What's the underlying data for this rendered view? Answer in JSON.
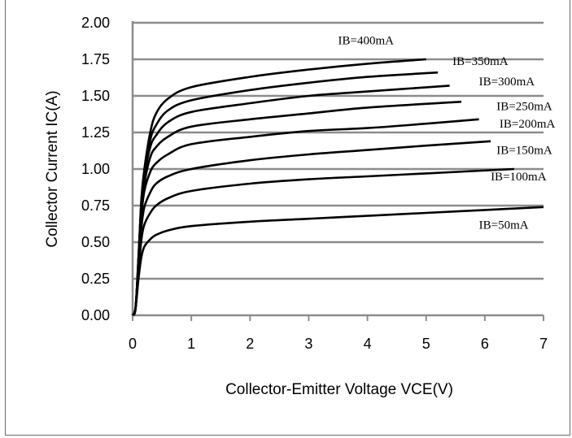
{
  "chart_data": {
    "type": "line",
    "title": "",
    "xlabel": "Collector-Emitter  Voltage VCE(V)",
    "ylabel": "Collector Current IC(A)",
    "xlim": [
      0,
      7
    ],
    "ylim": [
      0,
      2
    ],
    "x_ticks": [
      "0",
      "1",
      "2",
      "3",
      "4",
      "5",
      "6",
      "7"
    ],
    "y_ticks": [
      "0.00",
      "0.25",
      "0.50",
      "0.75",
      "1.00",
      "1.25",
      "1.50",
      "1.75",
      "2.00"
    ],
    "grid": "horizontal",
    "colors": {
      "line": "#000000",
      "grid": "#8c8c8c",
      "frame": "#6b6b6b"
    },
    "series": [
      {
        "name": "IB=400mA",
        "x": [
          0.05,
          0.1,
          0.15,
          0.2,
          0.3,
          0.4,
          0.6,
          1,
          2,
          3,
          4,
          5
        ],
        "y": [
          0.05,
          0.4,
          0.8,
          1.0,
          1.25,
          1.38,
          1.48,
          1.56,
          1.63,
          1.68,
          1.72,
          1.75
        ]
      },
      {
        "name": "IB=350mA",
        "x": [
          0.05,
          0.1,
          0.15,
          0.2,
          0.3,
          0.4,
          0.6,
          1,
          2,
          3,
          4,
          5.2
        ],
        "y": [
          0.05,
          0.4,
          0.78,
          0.98,
          1.2,
          1.3,
          1.4,
          1.47,
          1.54,
          1.59,
          1.63,
          1.66
        ]
      },
      {
        "name": "IB=300mA",
        "x": [
          0.05,
          0.1,
          0.15,
          0.2,
          0.3,
          0.4,
          0.6,
          1,
          2,
          3,
          4,
          5.4
        ],
        "y": [
          0.05,
          0.38,
          0.75,
          0.95,
          1.15,
          1.23,
          1.32,
          1.39,
          1.45,
          1.5,
          1.53,
          1.57
        ]
      },
      {
        "name": "IB=250mA",
        "x": [
          0.05,
          0.1,
          0.15,
          0.2,
          0.3,
          0.4,
          0.6,
          1,
          2,
          3,
          4,
          5.6
        ],
        "y": [
          0.05,
          0.37,
          0.72,
          0.9,
          1.08,
          1.15,
          1.22,
          1.29,
          1.34,
          1.38,
          1.42,
          1.46
        ]
      },
      {
        "name": "IB=200mA",
        "x": [
          0.05,
          0.1,
          0.15,
          0.2,
          0.3,
          0.4,
          0.6,
          1,
          2,
          3,
          4,
          5,
          5.9
        ],
        "y": [
          0.05,
          0.35,
          0.68,
          0.85,
          0.98,
          1.04,
          1.1,
          1.17,
          1.22,
          1.26,
          1.28,
          1.31,
          1.34
        ]
      },
      {
        "name": "IB=150mA",
        "x": [
          0.05,
          0.1,
          0.15,
          0.2,
          0.3,
          0.4,
          0.6,
          1,
          2,
          3,
          4,
          5,
          6.1
        ],
        "y": [
          0.05,
          0.32,
          0.6,
          0.74,
          0.84,
          0.9,
          0.95,
          1.0,
          1.06,
          1.1,
          1.13,
          1.16,
          1.19
        ]
      },
      {
        "name": "IB=100mA",
        "x": [
          0.05,
          0.1,
          0.15,
          0.2,
          0.3,
          0.4,
          0.6,
          1,
          2,
          3,
          4,
          5,
          6.5
        ],
        "y": [
          0.05,
          0.3,
          0.52,
          0.62,
          0.7,
          0.75,
          0.8,
          0.85,
          0.9,
          0.93,
          0.95,
          0.97,
          1.0
        ]
      },
      {
        "name": "IB=50mA",
        "x": [
          0.05,
          0.1,
          0.15,
          0.2,
          0.3,
          0.4,
          0.6,
          1,
          2,
          3,
          4,
          5,
          6,
          7
        ],
        "y": [
          0.05,
          0.25,
          0.4,
          0.47,
          0.52,
          0.55,
          0.58,
          0.61,
          0.64,
          0.66,
          0.68,
          0.7,
          0.72,
          0.74
        ]
      }
    ],
    "annotations": [
      {
        "text": "IB=400mA",
        "x": 3.5,
        "y": 1.88
      },
      {
        "text": "IB=350mA",
        "x": 5.45,
        "y": 1.74
      },
      {
        "text": "IB=300mA",
        "x": 5.9,
        "y": 1.6
      },
      {
        "text": "IB=250mA",
        "x": 6.2,
        "y": 1.43
      },
      {
        "text": "IB=200mA",
        "x": 6.25,
        "y": 1.31
      },
      {
        "text": "IB=150mA",
        "x": 6.2,
        "y": 1.13
      },
      {
        "text": "IB=100mA",
        "x": 6.1,
        "y": 0.95
      },
      {
        "text": "IB=50mA",
        "x": 5.9,
        "y": 0.62
      }
    ]
  }
}
